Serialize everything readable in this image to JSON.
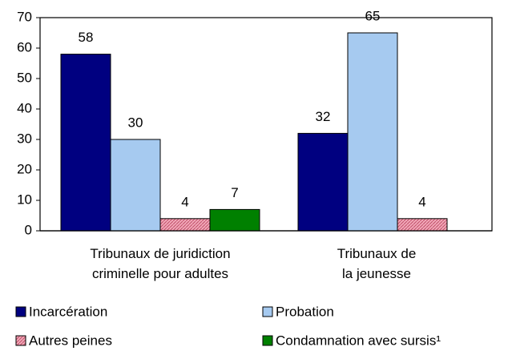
{
  "chart_data": {
    "type": "bar",
    "categories": [
      "Tribunaux de juridiction\ncriminelle pour adultes",
      "Tribunaux de\nla jeunesse"
    ],
    "series": [
      {
        "name": "Incarcération",
        "color": "#000080",
        "values": [
          58,
          32
        ]
      },
      {
        "name": "Probation",
        "color": "#a6caf0",
        "values": [
          30,
          65
        ]
      },
      {
        "name": "Autres peines",
        "color": "#f2a8b8",
        "pattern": "hatch",
        "values": [
          4,
          4
        ]
      },
      {
        "name": "Condamnation avec sursis¹",
        "color": "#008000",
        "values": [
          7,
          null
        ]
      }
    ],
    "ylim": [
      0,
      70
    ],
    "yticks": [
      0,
      10,
      20,
      30,
      40,
      50,
      60,
      70
    ],
    "grid": false
  }
}
